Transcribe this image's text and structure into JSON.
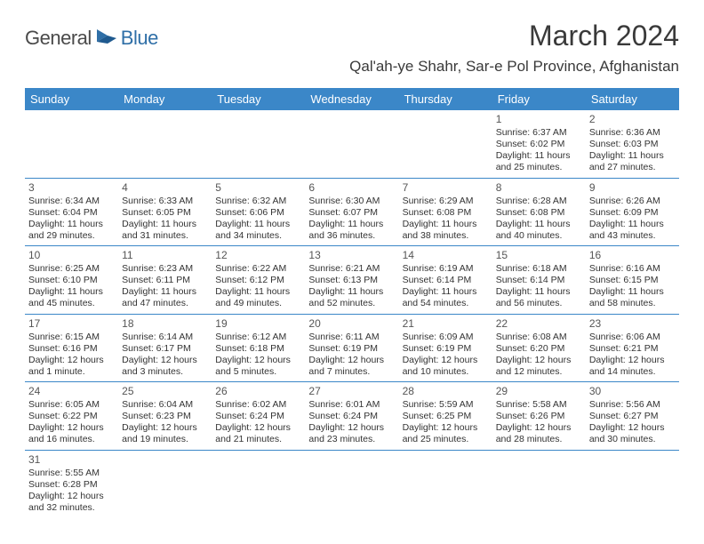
{
  "brand": {
    "general": "General",
    "blue": "Blue"
  },
  "header": {
    "title": "March 2024",
    "location": "Qal'ah-ye Shahr, Sar-e Pol Province, Afghanistan"
  },
  "colors": {
    "header_bg": "#3b87c8",
    "header_text": "#ffffff",
    "border": "#3b87c8",
    "text": "#333333",
    "logo_gray": "#4a4a4a",
    "logo_blue": "#2f6fa7"
  },
  "weekdays": [
    "Sunday",
    "Monday",
    "Tuesday",
    "Wednesday",
    "Thursday",
    "Friday",
    "Saturday"
  ],
  "weeks": [
    [
      null,
      null,
      null,
      null,
      null,
      {
        "d": "1",
        "sr": "Sunrise: 6:37 AM",
        "ss": "Sunset: 6:02 PM",
        "dl1": "Daylight: 11 hours",
        "dl2": "and 25 minutes."
      },
      {
        "d": "2",
        "sr": "Sunrise: 6:36 AM",
        "ss": "Sunset: 6:03 PM",
        "dl1": "Daylight: 11 hours",
        "dl2": "and 27 minutes."
      }
    ],
    [
      {
        "d": "3",
        "sr": "Sunrise: 6:34 AM",
        "ss": "Sunset: 6:04 PM",
        "dl1": "Daylight: 11 hours",
        "dl2": "and 29 minutes."
      },
      {
        "d": "4",
        "sr": "Sunrise: 6:33 AM",
        "ss": "Sunset: 6:05 PM",
        "dl1": "Daylight: 11 hours",
        "dl2": "and 31 minutes."
      },
      {
        "d": "5",
        "sr": "Sunrise: 6:32 AM",
        "ss": "Sunset: 6:06 PM",
        "dl1": "Daylight: 11 hours",
        "dl2": "and 34 minutes."
      },
      {
        "d": "6",
        "sr": "Sunrise: 6:30 AM",
        "ss": "Sunset: 6:07 PM",
        "dl1": "Daylight: 11 hours",
        "dl2": "and 36 minutes."
      },
      {
        "d": "7",
        "sr": "Sunrise: 6:29 AM",
        "ss": "Sunset: 6:08 PM",
        "dl1": "Daylight: 11 hours",
        "dl2": "and 38 minutes."
      },
      {
        "d": "8",
        "sr": "Sunrise: 6:28 AM",
        "ss": "Sunset: 6:08 PM",
        "dl1": "Daylight: 11 hours",
        "dl2": "and 40 minutes."
      },
      {
        "d": "9",
        "sr": "Sunrise: 6:26 AM",
        "ss": "Sunset: 6:09 PM",
        "dl1": "Daylight: 11 hours",
        "dl2": "and 43 minutes."
      }
    ],
    [
      {
        "d": "10",
        "sr": "Sunrise: 6:25 AM",
        "ss": "Sunset: 6:10 PM",
        "dl1": "Daylight: 11 hours",
        "dl2": "and 45 minutes."
      },
      {
        "d": "11",
        "sr": "Sunrise: 6:23 AM",
        "ss": "Sunset: 6:11 PM",
        "dl1": "Daylight: 11 hours",
        "dl2": "and 47 minutes."
      },
      {
        "d": "12",
        "sr": "Sunrise: 6:22 AM",
        "ss": "Sunset: 6:12 PM",
        "dl1": "Daylight: 11 hours",
        "dl2": "and 49 minutes."
      },
      {
        "d": "13",
        "sr": "Sunrise: 6:21 AM",
        "ss": "Sunset: 6:13 PM",
        "dl1": "Daylight: 11 hours",
        "dl2": "and 52 minutes."
      },
      {
        "d": "14",
        "sr": "Sunrise: 6:19 AM",
        "ss": "Sunset: 6:14 PM",
        "dl1": "Daylight: 11 hours",
        "dl2": "and 54 minutes."
      },
      {
        "d": "15",
        "sr": "Sunrise: 6:18 AM",
        "ss": "Sunset: 6:14 PM",
        "dl1": "Daylight: 11 hours",
        "dl2": "and 56 minutes."
      },
      {
        "d": "16",
        "sr": "Sunrise: 6:16 AM",
        "ss": "Sunset: 6:15 PM",
        "dl1": "Daylight: 11 hours",
        "dl2": "and 58 minutes."
      }
    ],
    [
      {
        "d": "17",
        "sr": "Sunrise: 6:15 AM",
        "ss": "Sunset: 6:16 PM",
        "dl1": "Daylight: 12 hours",
        "dl2": "and 1 minute."
      },
      {
        "d": "18",
        "sr": "Sunrise: 6:14 AM",
        "ss": "Sunset: 6:17 PM",
        "dl1": "Daylight: 12 hours",
        "dl2": "and 3 minutes."
      },
      {
        "d": "19",
        "sr": "Sunrise: 6:12 AM",
        "ss": "Sunset: 6:18 PM",
        "dl1": "Daylight: 12 hours",
        "dl2": "and 5 minutes."
      },
      {
        "d": "20",
        "sr": "Sunrise: 6:11 AM",
        "ss": "Sunset: 6:19 PM",
        "dl1": "Daylight: 12 hours",
        "dl2": "and 7 minutes."
      },
      {
        "d": "21",
        "sr": "Sunrise: 6:09 AM",
        "ss": "Sunset: 6:19 PM",
        "dl1": "Daylight: 12 hours",
        "dl2": "and 10 minutes."
      },
      {
        "d": "22",
        "sr": "Sunrise: 6:08 AM",
        "ss": "Sunset: 6:20 PM",
        "dl1": "Daylight: 12 hours",
        "dl2": "and 12 minutes."
      },
      {
        "d": "23",
        "sr": "Sunrise: 6:06 AM",
        "ss": "Sunset: 6:21 PM",
        "dl1": "Daylight: 12 hours",
        "dl2": "and 14 minutes."
      }
    ],
    [
      {
        "d": "24",
        "sr": "Sunrise: 6:05 AM",
        "ss": "Sunset: 6:22 PM",
        "dl1": "Daylight: 12 hours",
        "dl2": "and 16 minutes."
      },
      {
        "d": "25",
        "sr": "Sunrise: 6:04 AM",
        "ss": "Sunset: 6:23 PM",
        "dl1": "Daylight: 12 hours",
        "dl2": "and 19 minutes."
      },
      {
        "d": "26",
        "sr": "Sunrise: 6:02 AM",
        "ss": "Sunset: 6:24 PM",
        "dl1": "Daylight: 12 hours",
        "dl2": "and 21 minutes."
      },
      {
        "d": "27",
        "sr": "Sunrise: 6:01 AM",
        "ss": "Sunset: 6:24 PM",
        "dl1": "Daylight: 12 hours",
        "dl2": "and 23 minutes."
      },
      {
        "d": "28",
        "sr": "Sunrise: 5:59 AM",
        "ss": "Sunset: 6:25 PM",
        "dl1": "Daylight: 12 hours",
        "dl2": "and 25 minutes."
      },
      {
        "d": "29",
        "sr": "Sunrise: 5:58 AM",
        "ss": "Sunset: 6:26 PM",
        "dl1": "Daylight: 12 hours",
        "dl2": "and 28 minutes."
      },
      {
        "d": "30",
        "sr": "Sunrise: 5:56 AM",
        "ss": "Sunset: 6:27 PM",
        "dl1": "Daylight: 12 hours",
        "dl2": "and 30 minutes."
      }
    ],
    [
      {
        "d": "31",
        "sr": "Sunrise: 5:55 AM",
        "ss": "Sunset: 6:28 PM",
        "dl1": "Daylight: 12 hours",
        "dl2": "and 32 minutes."
      },
      null,
      null,
      null,
      null,
      null,
      null
    ]
  ]
}
